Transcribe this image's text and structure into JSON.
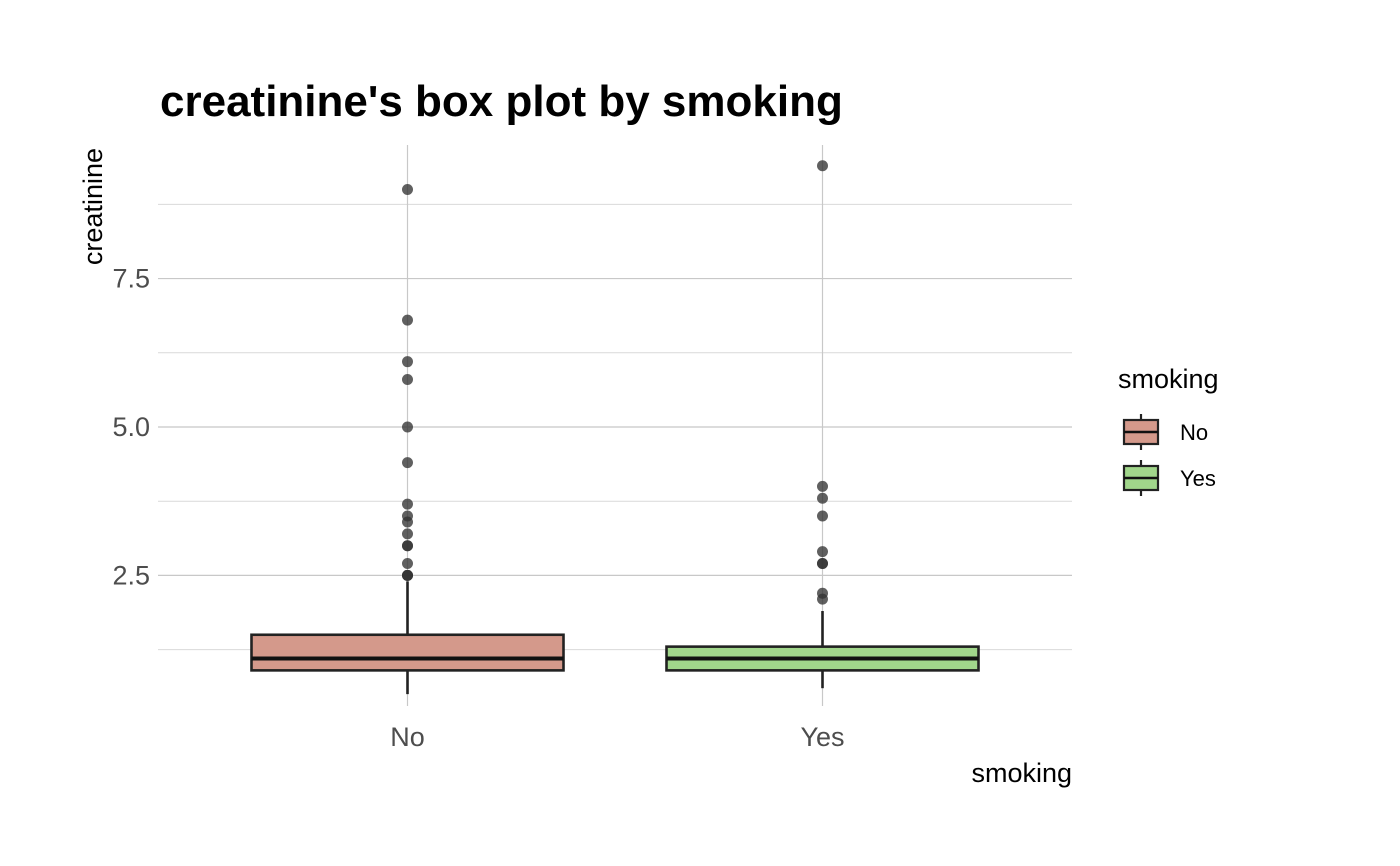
{
  "chart_data": {
    "type": "box",
    "title": "creatinine's box plot by smoking",
    "xlabel": "smoking",
    "ylabel": "creatinine",
    "categories": [
      "No",
      "Yes"
    ],
    "ylim": [
      0.3,
      9.75
    ],
    "y_ticks": [
      2.5,
      5.0,
      7.5
    ],
    "y_tick_labels": [
      "2.5",
      "5.0",
      "7.5"
    ],
    "grid": true,
    "legend": {
      "title": "smoking",
      "position": "right",
      "entries": [
        "No",
        "Yes"
      ]
    },
    "series": [
      {
        "category": "No",
        "color": "#d4998b",
        "whisker_low": 0.5,
        "q1": 0.9,
        "median": 1.1,
        "q3": 1.5,
        "whisker_high": 2.4,
        "outliers": [
          2.5,
          2.5,
          2.5,
          2.7,
          3.0,
          3.0,
          3.2,
          3.4,
          3.5,
          3.7,
          4.4,
          5.0,
          5.8,
          6.1,
          6.8,
          9.0
        ]
      },
      {
        "category": "Yes",
        "color": "#a1d68b",
        "whisker_low": 0.6,
        "q1": 0.9,
        "median": 1.1,
        "q3": 1.3,
        "whisker_high": 1.9,
        "outliers": [
          2.1,
          2.2,
          2.7,
          2.7,
          2.9,
          3.5,
          3.8,
          4.0,
          9.4
        ]
      }
    ]
  }
}
